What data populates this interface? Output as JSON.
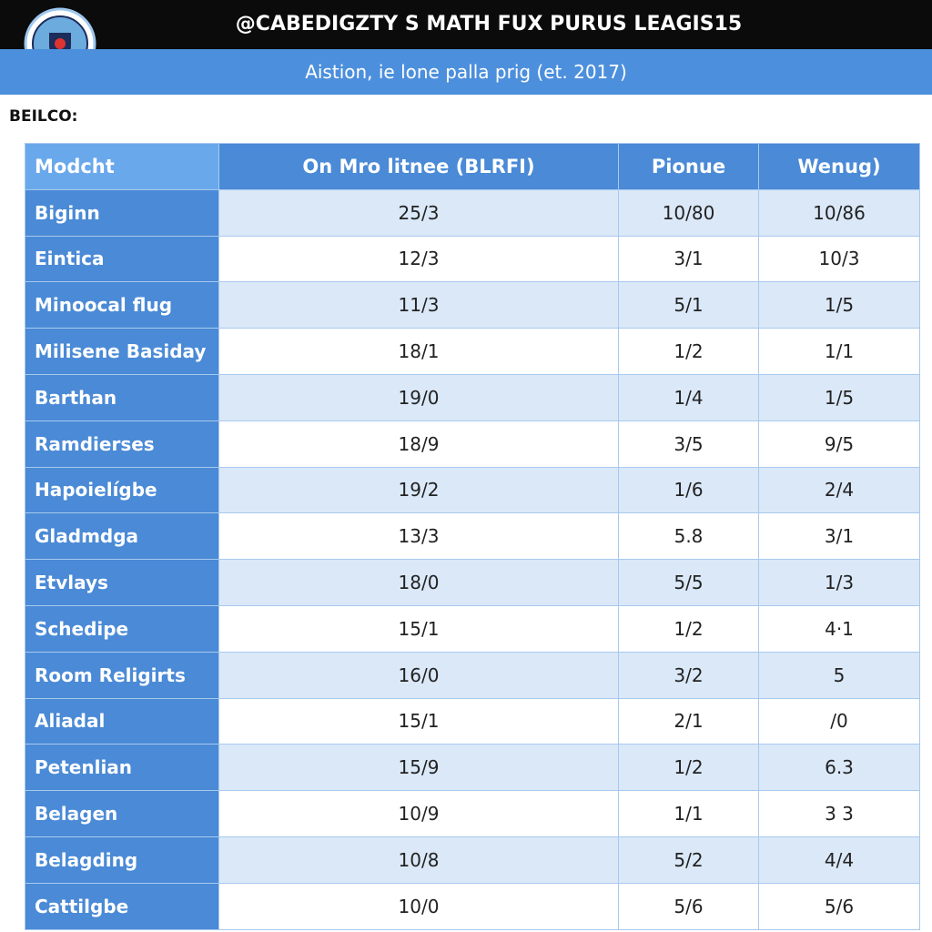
{
  "header": {
    "title": "@CABEDIGZTY S MATH FUX PURUS LEAGIS15",
    "subtitle": "Aistion, ie lone palla prig (et. 2017)"
  },
  "section_label": "BEILCO:",
  "table": {
    "columns": [
      "Modcht",
      "On Mro litnee (BLRFI)",
      "Pionue",
      "Wenug)"
    ],
    "rows": [
      [
        "Biginn",
        "25/3",
        "10/80",
        "10/86"
      ],
      [
        "Eintica",
        "12/3",
        "3/1",
        "10/3"
      ],
      [
        "Minoocal flug",
        "11/3",
        "5/1",
        "1/5"
      ],
      [
        "Milisene Basiday",
        "18/1",
        "1/2",
        "1/1"
      ],
      [
        "Barthan",
        "19/0",
        "1/4",
        "1/5"
      ],
      [
        "Ramdierses",
        "18/9",
        "3/5",
        "9/5"
      ],
      [
        "Hapoielígbe",
        "19/2",
        "1/6",
        "2/4"
      ],
      [
        "Gladmdga",
        "13/3",
        "5.8",
        "3/1"
      ],
      [
        "Etvlays",
        "18/0",
        "5/5",
        "1/3"
      ],
      [
        "Schedipe",
        "15/1",
        "1/2",
        "4·1"
      ],
      [
        "Room Religirts",
        "16/0",
        "3/2",
        "5"
      ],
      [
        "Aliadal",
        "15/1",
        "2/1",
        "/0"
      ],
      [
        "Petenlian",
        "15/9",
        "1/2",
        "6.3"
      ],
      [
        "Belagen",
        "10/9",
        "1/1",
        "3 3"
      ],
      [
        "Belagding",
        "10/8",
        "5/2",
        "4/4"
      ],
      [
        "Cattilgbe",
        "10/0",
        "5/6",
        "5/6"
      ]
    ]
  }
}
